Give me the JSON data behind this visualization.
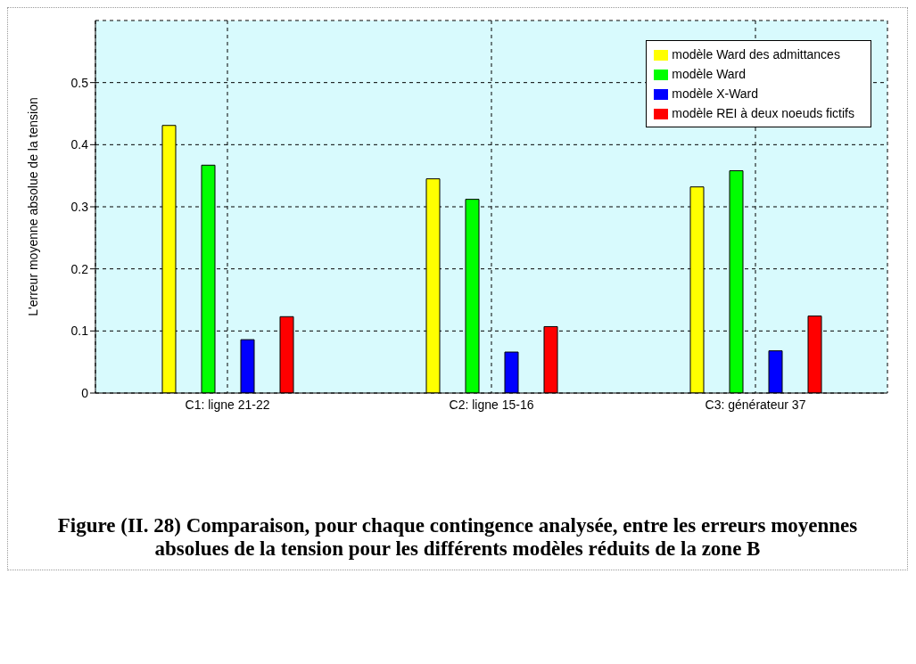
{
  "chart_data": {
    "type": "bar",
    "title": "Figure (II. 28) Comparaison, pour chaque contingence analysée, entre les erreurs moyennes absolues de la tension pour les différents modèles réduits de la zone B",
    "ylabel": "L'erreur moyenne absolue de la tension",
    "categories": [
      "C1: ligne 21-22",
      "C2: ligne 15-16",
      "C3: générateur 37"
    ],
    "series": [
      {
        "name": "modèle Ward des admittances",
        "color": "#ffff00",
        "values": [
          0.431,
          0.345,
          0.332
        ]
      },
      {
        "name": "modèle Ward",
        "color": "#00ff00",
        "values": [
          0.367,
          0.312,
          0.358
        ]
      },
      {
        "name": "modèle X-Ward",
        "color": "#0000ff",
        "values": [
          0.086,
          0.066,
          0.068
        ]
      },
      {
        "name": "modèle REI à deux noeuds fictifs",
        "color": "#ff0000",
        "values": [
          0.123,
          0.107,
          0.124
        ]
      }
    ],
    "ylim": [
      0,
      0.6
    ],
    "yticks": [
      0,
      0.1,
      0.2,
      0.3,
      0.4,
      0.5
    ],
    "grid": true,
    "legend": "top right"
  }
}
